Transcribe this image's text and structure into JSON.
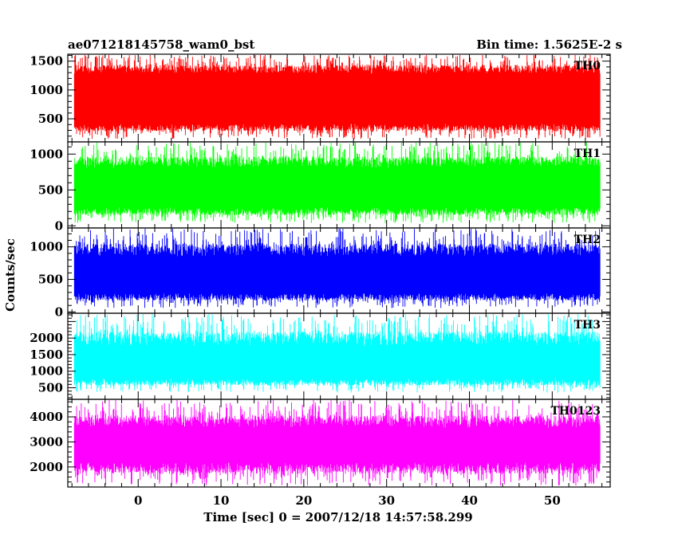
{
  "chart_data": {
    "type": "line",
    "title_left": "ae071218145758_wam0_bst",
    "title_right": "Bin time: 1.5625E-2 s",
    "xlabel": "Time [sec] 0 = 2007/12/18 14:57:58.299",
    "ylabel": "Counts/sec",
    "xlim": [
      -8.5,
      57
    ],
    "x_data_range": [
      -7.7,
      55.8
    ],
    "x_ticks": [
      0,
      10,
      20,
      30,
      40,
      50
    ],
    "x_tick_labels": [
      "0",
      "10",
      "20",
      "30",
      "40",
      "50"
    ],
    "grid": false,
    "panels": [
      {
        "name": "TH0",
        "color": "#ff0000",
        "ylim": [
          100,
          1620
        ],
        "y_ticks": [
          500,
          1000,
          1500
        ],
        "y_tick_labels": [
          "500",
          "1000",
          "1500"
        ],
        "band": [
          420,
          1280
        ],
        "spike_range": [
          150,
          1620
        ]
      },
      {
        "name": "TH1",
        "color": "#00ff00",
        "ylim": [
          -30,
          1170
        ],
        "y_ticks": [
          0,
          500,
          1000
        ],
        "y_tick_labels": [
          "0",
          "500",
          "1000"
        ],
        "band": [
          260,
          800
        ],
        "spike_range": [
          40,
          1170
        ]
      },
      {
        "name": "TH2",
        "color": "#0000ff",
        "ylim": [
          -20,
          1290
        ],
        "y_ticks": [
          0,
          500,
          1000
        ],
        "y_tick_labels": [
          "0",
          "500",
          "1000"
        ],
        "band": [
          290,
          850
        ],
        "spike_range": [
          60,
          1290
        ]
      },
      {
        "name": "TH3",
        "color": "#00ffff",
        "ylim": [
          150,
          2750
        ],
        "y_ticks": [
          500,
          1000,
          1500,
          2000
        ],
        "y_tick_labels": [
          "500",
          "1000",
          "1500",
          "2000"
        ],
        "band": [
          780,
          1750
        ],
        "spike_range": [
          350,
          2750
        ]
      },
      {
        "name": "TH0123",
        "color": "#ff00ff",
        "ylim": [
          1200,
          4700
        ],
        "y_ticks": [
          2000,
          3000,
          4000
        ],
        "y_tick_labels": [
          "2000",
          "3000",
          "4000"
        ],
        "band": [
          2200,
          3550
        ],
        "spike_range": [
          1250,
          4700
        ]
      }
    ]
  }
}
